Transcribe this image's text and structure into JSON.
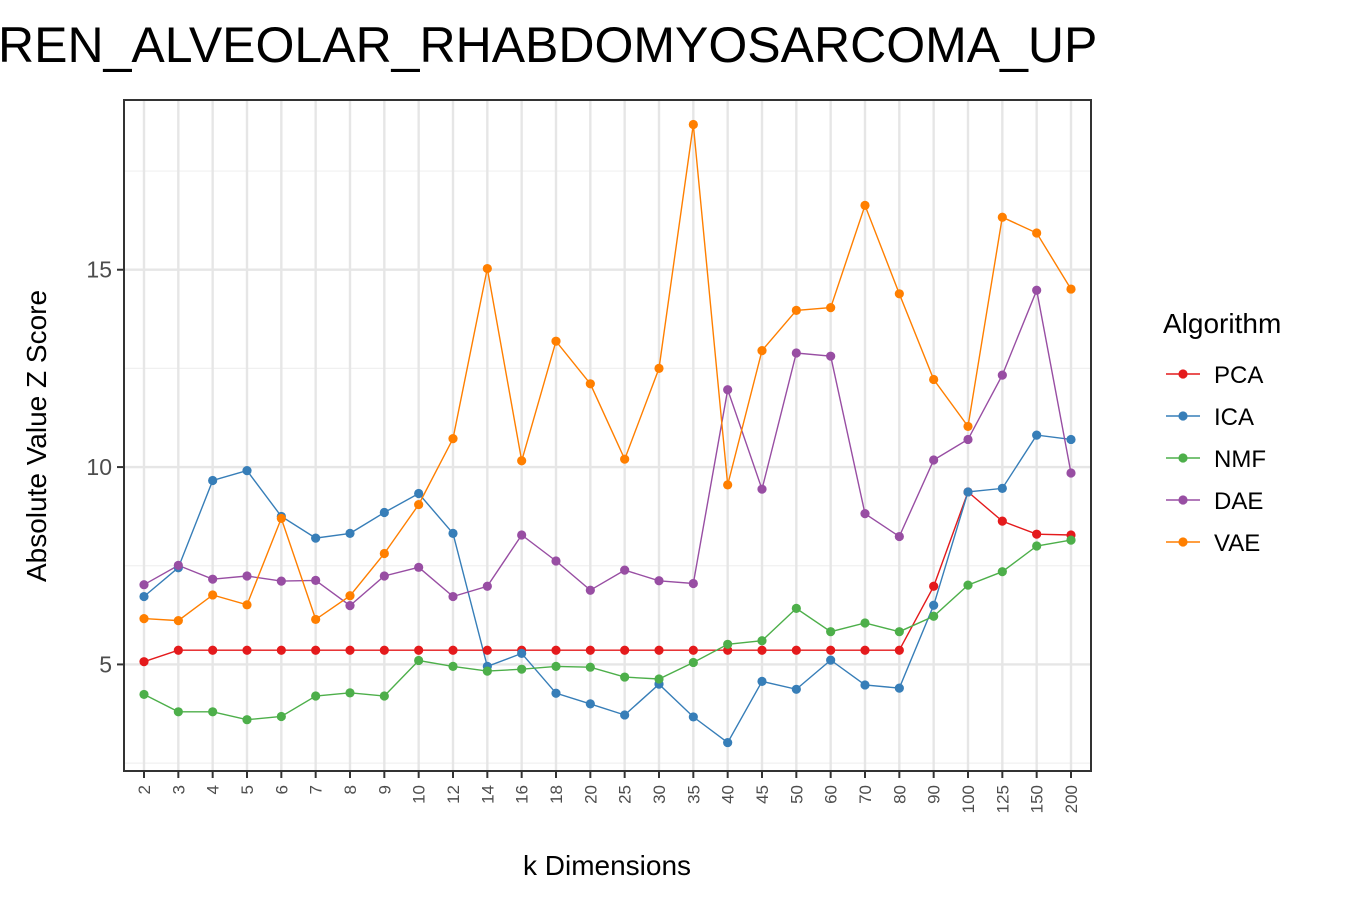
{
  "chart_data": {
    "type": "line",
    "title": "REN_ALVEOLAR_RHABDOMYOSARCOMA_UP",
    "xlabel": "k Dimensions",
    "ylabel": "Absolute Value Z Score",
    "categories": [
      "2",
      "3",
      "4",
      "5",
      "6",
      "7",
      "8",
      "9",
      "10",
      "12",
      "14",
      "16",
      "18",
      "20",
      "25",
      "30",
      "35",
      "40",
      "45",
      "50",
      "60",
      "70",
      "80",
      "90",
      "100",
      "125",
      "150",
      "200"
    ],
    "ylim": [
      2.3,
      19.3
    ],
    "yticks": [
      5,
      10,
      15
    ],
    "grid": true,
    "legend": {
      "title": "Algorithm",
      "position": "right"
    },
    "series": [
      {
        "name": "PCA",
        "color": "#e41a1c",
        "values": [
          5.07,
          5.36,
          5.36,
          5.36,
          5.36,
          5.36,
          5.36,
          5.36,
          5.36,
          5.36,
          5.36,
          5.36,
          5.36,
          5.36,
          5.36,
          5.36,
          5.36,
          5.36,
          5.36,
          5.36,
          5.36,
          5.36,
          5.36,
          6.98,
          9.37,
          8.63,
          8.3,
          8.28
        ]
      },
      {
        "name": "ICA",
        "color": "#377eb8",
        "values": [
          6.72,
          7.45,
          9.66,
          9.91,
          8.75,
          8.2,
          8.32,
          8.85,
          9.33,
          8.32,
          4.95,
          5.28,
          4.27,
          4.0,
          3.72,
          4.5,
          3.67,
          3.02,
          4.57,
          4.37,
          5.11,
          4.48,
          4.4,
          6.5,
          9.37,
          9.46,
          10.81,
          10.7
        ]
      },
      {
        "name": "NMF",
        "color": "#4daf4a",
        "values": [
          4.24,
          3.8,
          3.8,
          3.6,
          3.68,
          4.2,
          4.28,
          4.2,
          5.1,
          4.95,
          4.83,
          4.88,
          4.95,
          4.93,
          4.68,
          4.63,
          5.05,
          5.51,
          5.6,
          6.42,
          5.83,
          6.05,
          5.83,
          6.22,
          7.01,
          7.35,
          8.0,
          8.15
        ]
      },
      {
        "name": "DAE",
        "color": "#984ea3",
        "values": [
          7.02,
          7.51,
          7.16,
          7.24,
          7.11,
          7.13,
          6.49,
          7.24,
          7.46,
          6.72,
          6.98,
          8.28,
          7.62,
          6.88,
          7.39,
          7.12,
          7.05,
          11.96,
          9.44,
          12.89,
          12.81,
          8.82,
          8.24,
          10.18,
          10.7,
          12.33,
          14.48,
          9.85
        ]
      },
      {
        "name": "VAE",
        "color": "#ff7f00",
        "values": [
          6.16,
          6.11,
          6.76,
          6.51,
          8.7,
          6.14,
          6.74,
          7.81,
          9.05,
          10.72,
          15.03,
          10.16,
          13.19,
          12.11,
          10.2,
          12.5,
          18.68,
          9.55,
          12.95,
          13.97,
          14.04,
          16.63,
          14.39,
          12.22,
          11.03,
          16.33,
          15.93,
          14.51
        ]
      }
    ]
  }
}
